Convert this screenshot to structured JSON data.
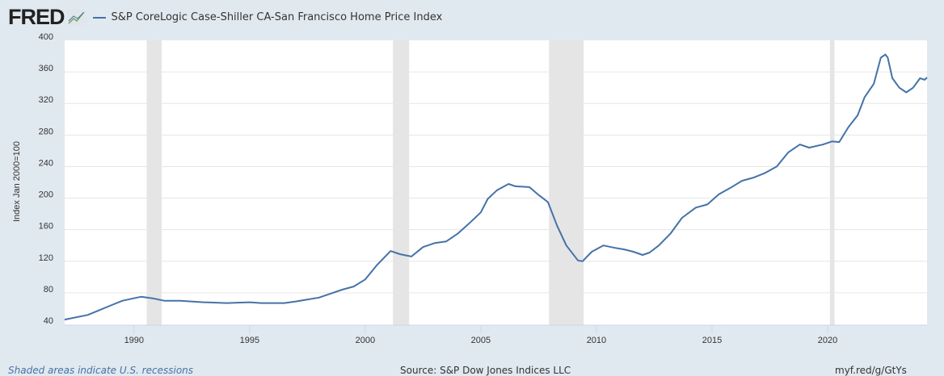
{
  "header": {
    "logo": "FRED",
    "title": "S&P CoreLogic Case-Shiller CA-San Francisco Home Price Index"
  },
  "footer": {
    "note": "Shaded areas indicate U.S. recessions",
    "source": "Source: S&P Dow Jones Indices LLC",
    "link": "myf.red/g/GtYs"
  },
  "chart_data": {
    "type": "line",
    "title": "S&P CoreLogic Case-Shiller CA-San Francisco Home Price Index",
    "ylabel": "Index Jan 2000=100",
    "xlim": [
      1987.0,
      2024.3
    ],
    "ylim": [
      40,
      400
    ],
    "yticks": [
      40,
      80,
      120,
      160,
      200,
      240,
      280,
      320,
      360,
      400
    ],
    "xticks": [
      1990,
      1995,
      2000,
      2005,
      2010,
      2015,
      2020
    ],
    "grid": true,
    "line_color": "#4572a7",
    "recessions": [
      [
        1990.55,
        1991.2
      ],
      [
        2001.2,
        2001.9
      ],
      [
        2007.95,
        2009.45
      ],
      [
        2020.1,
        2020.3
      ]
    ],
    "x": [
      1987.0,
      1988.0,
      1988.5,
      1989.0,
      1989.5,
      1990.3,
      1990.8,
      1991.3,
      1992.0,
      1993.0,
      1994.0,
      1995.0,
      1995.5,
      1996.5,
      1997.0,
      1998.0,
      1998.5,
      1999.0,
      1999.5,
      2000.0,
      2000.5,
      2001.1,
      2001.5,
      2002.0,
      2002.5,
      2003.0,
      2003.5,
      2004.0,
      2004.5,
      2005.0,
      2005.3,
      2005.7,
      2006.2,
      2006.5,
      2007.1,
      2007.5,
      2007.9,
      2008.3,
      2008.7,
      2009.2,
      2009.4,
      2009.8,
      2010.3,
      2010.8,
      2011.2,
      2011.6,
      2012.0,
      2012.3,
      2012.7,
      2013.2,
      2013.7,
      2014.3,
      2014.8,
      2015.3,
      2015.8,
      2016.3,
      2016.8,
      2017.3,
      2017.8,
      2018.3,
      2018.8,
      2019.2,
      2019.8,
      2020.2,
      2020.5,
      2020.9,
      2021.3,
      2021.6,
      2022.0,
      2022.3,
      2022.5,
      2022.6,
      2022.8,
      2023.1,
      2023.4,
      2023.7,
      2024.0,
      2024.2,
      2024.3
    ],
    "y": [
      46,
      52,
      58,
      64,
      70,
      75,
      73,
      70,
      70,
      68,
      67,
      68,
      67,
      67,
      69,
      74,
      79,
      84,
      88,
      97,
      115,
      133,
      129,
      126,
      138,
      143,
      145,
      155,
      168,
      182,
      199,
      210,
      218,
      215,
      214,
      204,
      195,
      165,
      140,
      121,
      120,
      132,
      140,
      137,
      135,
      132,
      128,
      131,
      140,
      155,
      175,
      188,
      192,
      205,
      213,
      222,
      226,
      232,
      240,
      258,
      268,
      264,
      268,
      272,
      271,
      290,
      305,
      328,
      345,
      378,
      382,
      378,
      352,
      340,
      334,
      340,
      352,
      350,
      353
    ]
  }
}
